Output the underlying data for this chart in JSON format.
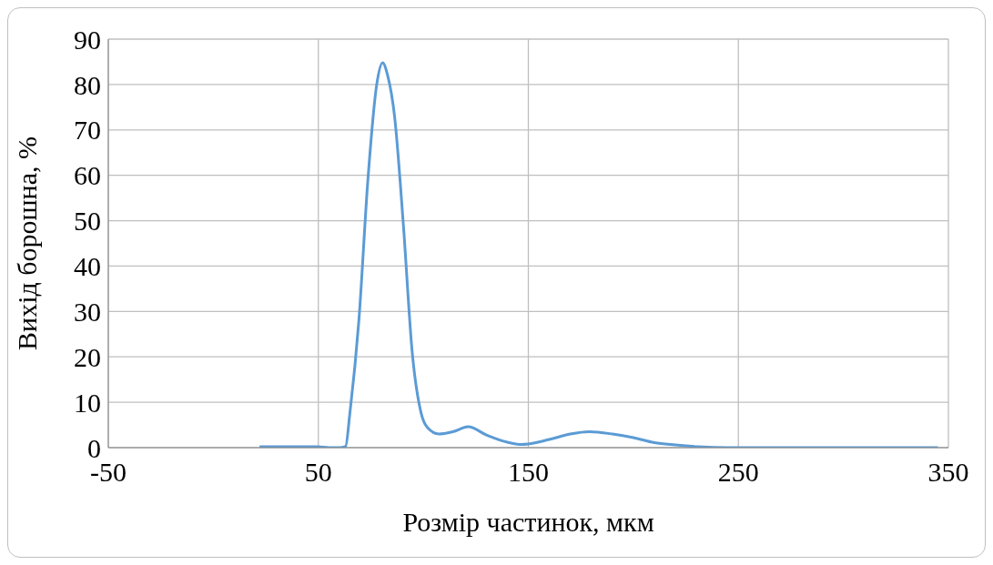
{
  "chart_data": {
    "type": "line",
    "xlabel": "Розмір частинок, мкм",
    "ylabel": "Вихід борошна, %",
    "x": [
      22,
      35,
      50,
      55,
      60,
      63,
      65,
      69.3,
      73.6,
      77.8,
      80.6,
      83,
      86.3,
      90.5,
      94.7,
      99,
      102,
      107.4,
      114,
      121.4,
      130,
      140,
      146.7,
      150,
      160,
      170,
      179,
      190,
      200,
      210,
      220,
      231,
      245,
      270,
      300,
      345
    ],
    "series": [
      {
        "color": "#5b9bd5",
        "values": [
          0.2,
          0.2,
          0.2,
          0,
          0,
          0.3,
          7.5,
          28,
          59,
          80,
          84.8,
          82,
          73,
          49,
          21,
          7.5,
          4.4,
          3,
          3.5,
          4.6,
          2.8,
          1.2,
          0.7,
          0.8,
          1.8,
          3,
          3.5,
          3,
          2.2,
          1.1,
          0.6,
          0.2,
          0,
          0,
          0,
          0
        ]
      }
    ],
    "xlim": [
      -50,
      350
    ],
    "xticks": [
      -50,
      50,
      150,
      250,
      350
    ],
    "ylim": [
      0,
      90
    ],
    "yticks": [
      0,
      10,
      20,
      30,
      40,
      50,
      60,
      70,
      80,
      90
    ],
    "grid": true,
    "legend": false,
    "marker": "none",
    "line_style": "solid"
  }
}
